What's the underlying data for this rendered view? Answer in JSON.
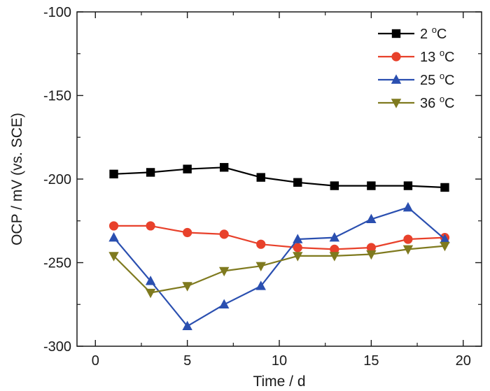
{
  "chart_data": {
    "type": "line",
    "xlabel": "Time / d",
    "ylabel": "OCP / mV (vs. SCE)",
    "xlim": [
      -1,
      21
    ],
    "ylim": [
      -300,
      -100
    ],
    "xticks": [
      0,
      5,
      10,
      15,
      20
    ],
    "yticks": [
      -300,
      -250,
      -200,
      -150,
      -100
    ],
    "legend_position": "top-right",
    "series": [
      {
        "name": "2 oC",
        "label_main": "2 ",
        "label_sup": "o",
        "label_tail": "C",
        "color": "#000000",
        "marker": "square",
        "x": [
          1,
          3,
          5,
          7,
          9,
          11,
          13,
          15,
          17,
          19
        ],
        "y": [
          -197,
          -196,
          -194,
          -193,
          -199,
          -202,
          -204,
          -204,
          -204,
          -205
        ]
      },
      {
        "name": "13 oC",
        "label_main": "13 ",
        "label_sup": "o",
        "label_tail": "C",
        "color": "#e8412b",
        "marker": "circle",
        "x": [
          1,
          3,
          5,
          7,
          9,
          11,
          13,
          15,
          17,
          19
        ],
        "y": [
          -228,
          -228,
          -232,
          -233,
          -239,
          -241,
          -242,
          -241,
          -236,
          -235
        ]
      },
      {
        "name": "25 oC",
        "label_main": "25 ",
        "label_sup": "o",
        "label_tail": "C",
        "color": "#2a4fb0",
        "marker": "triangle-up",
        "x": [
          1,
          3,
          5,
          7,
          9,
          11,
          13,
          15,
          17,
          19
        ],
        "y": [
          -235,
          -261,
          -288,
          -275,
          -264,
          -236,
          -235,
          -224,
          -217,
          -236
        ]
      },
      {
        "name": "36 oC",
        "label_main": "36 ",
        "label_sup": "o",
        "label_tail": "C",
        "color": "#7f7a1f",
        "marker": "triangle-down",
        "x": [
          1,
          3,
          5,
          7,
          9,
          11,
          13,
          15,
          17,
          19
        ],
        "y": [
          -246,
          -268,
          -264,
          -255,
          -252,
          -246,
          -246,
          -245,
          -242,
          -240
        ]
      }
    ]
  }
}
